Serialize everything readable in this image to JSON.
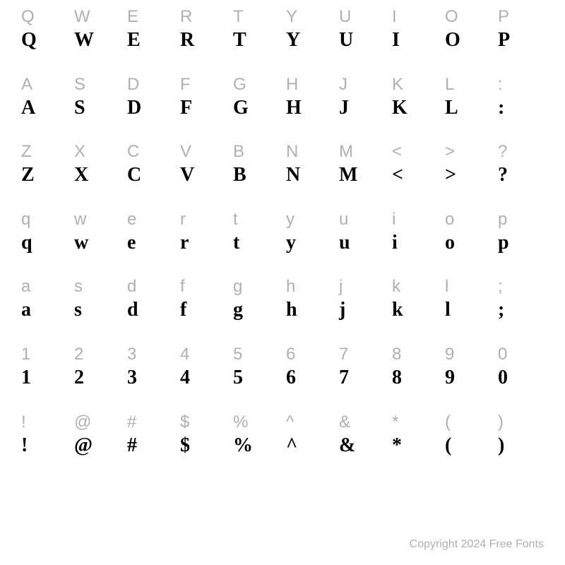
{
  "grid": {
    "rows": [
      {
        "labels": [
          "Q",
          "W",
          "E",
          "R",
          "T",
          "Y",
          "U",
          "I",
          "O",
          "P"
        ],
        "samples": [
          "Q",
          "W",
          "E",
          "R",
          "T",
          "Y",
          "U",
          "I",
          "O",
          "P"
        ]
      },
      {
        "labels": [
          "A",
          "S",
          "D",
          "F",
          "G",
          "H",
          "J",
          "K",
          "L",
          ":"
        ],
        "samples": [
          "A",
          "S",
          "D",
          "F",
          "G",
          "H",
          "J",
          "K",
          "L",
          ":"
        ]
      },
      {
        "labels": [
          "Z",
          "X",
          "C",
          "V",
          "B",
          "N",
          "M",
          "<",
          ">",
          "?"
        ],
        "samples": [
          "Z",
          "X",
          "C",
          "V",
          "B",
          "N",
          "M",
          "<",
          ">",
          "?"
        ]
      },
      {
        "labels": [
          "q",
          "w",
          "e",
          "r",
          "t",
          "y",
          "u",
          "i",
          "o",
          "p"
        ],
        "samples": [
          "q",
          "w",
          "e",
          "r",
          "t",
          "y",
          "u",
          "i",
          "o",
          "p"
        ]
      },
      {
        "labels": [
          "a",
          "s",
          "d",
          "f",
          "g",
          "h",
          "j",
          "k",
          "l",
          ";"
        ],
        "samples": [
          "a",
          "s",
          "d",
          "f",
          "g",
          "h",
          "j",
          "k",
          "l",
          ";"
        ]
      },
      {
        "labels": [
          "1",
          "2",
          "3",
          "4",
          "5",
          "6",
          "7",
          "8",
          "9",
          "0"
        ],
        "samples": [
          "1",
          "2",
          "3",
          "4",
          "5",
          "6",
          "7",
          "8",
          "9",
          "0"
        ]
      },
      {
        "labels": [
          "!",
          "@",
          "#",
          "$",
          "%",
          "^",
          "&",
          "*",
          "(",
          ")"
        ],
        "samples": [
          "!",
          "@",
          "#",
          "$",
          "%",
          "^",
          "&",
          "*",
          "(",
          ")"
        ]
      }
    ],
    "label_color": "#b0b0b0",
    "sample_color": "#000000",
    "label_fontsize": 24,
    "sample_fontsize": 28,
    "sample_fontweight": 700,
    "background_color": "#ffffff",
    "columns": 10,
    "label_font": "sans-serif",
    "sample_font": "serif-bold"
  },
  "footer": {
    "text": "Copyright 2024 Free Fonts",
    "color": "#b0b0b0",
    "fontsize": 16
  }
}
